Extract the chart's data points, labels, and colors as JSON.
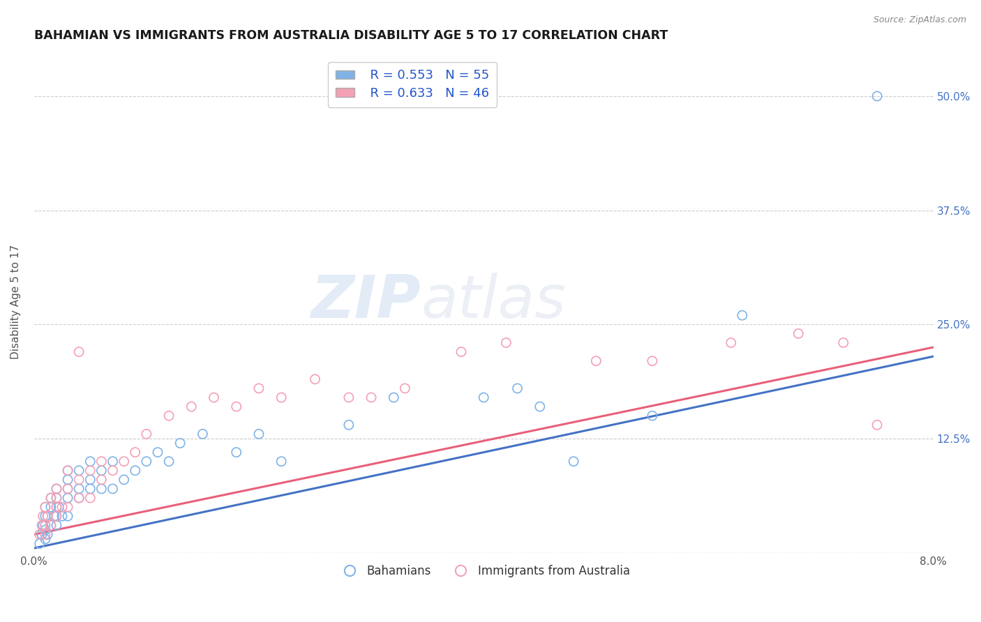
{
  "title": "BAHAMIAN VS IMMIGRANTS FROM AUSTRALIA DISABILITY AGE 5 TO 17 CORRELATION CHART",
  "source": "Source: ZipAtlas.com",
  "ylabel": "Disability Age 5 to 17",
  "xlim": [
    0.0,
    0.08
  ],
  "ylim": [
    0.0,
    0.55
  ],
  "xticks": [
    0.0,
    0.01,
    0.02,
    0.03,
    0.04,
    0.05,
    0.06,
    0.07,
    0.08
  ],
  "xticklabels": [
    "0.0%",
    "",
    "",
    "",
    "",
    "",
    "",
    "",
    "8.0%"
  ],
  "ytick_positions": [
    0.0,
    0.125,
    0.25,
    0.375,
    0.5
  ],
  "yticklabels": [
    "",
    "12.5%",
    "25.0%",
    "37.5%",
    "50.0%"
  ],
  "blue_color": "#7fb3e8",
  "pink_color": "#f4a0b5",
  "blue_line_color": "#4472c4",
  "pink_line_color": "#e8607a",
  "legend_r1": "R = 0.553",
  "legend_n1": "N = 55",
  "legend_r2": "R = 0.633",
  "legend_n2": "N = 46",
  "legend_label1": "Bahamians",
  "legend_label2": "Immigrants from Australia",
  "watermark": "ZIPatlas",
  "background_color": "#ffffff",
  "blue_scatter_x": [
    0.0005,
    0.0007,
    0.0008,
    0.001,
    0.001,
    0.001,
    0.001,
    0.001,
    0.0012,
    0.0012,
    0.0015,
    0.0015,
    0.0015,
    0.0018,
    0.002,
    0.002,
    0.002,
    0.002,
    0.002,
    0.0022,
    0.0025,
    0.003,
    0.003,
    0.003,
    0.003,
    0.003,
    0.004,
    0.004,
    0.004,
    0.005,
    0.005,
    0.005,
    0.006,
    0.006,
    0.007,
    0.007,
    0.008,
    0.009,
    0.01,
    0.011,
    0.012,
    0.013,
    0.015,
    0.018,
    0.02,
    0.022,
    0.028,
    0.032,
    0.04,
    0.043,
    0.045,
    0.048,
    0.055,
    0.063,
    0.075
  ],
  "blue_scatter_y": [
    0.01,
    0.02,
    0.03,
    0.015,
    0.025,
    0.03,
    0.04,
    0.05,
    0.02,
    0.04,
    0.03,
    0.05,
    0.06,
    0.04,
    0.03,
    0.04,
    0.05,
    0.06,
    0.07,
    0.05,
    0.04,
    0.04,
    0.06,
    0.07,
    0.08,
    0.09,
    0.06,
    0.07,
    0.09,
    0.07,
    0.08,
    0.1,
    0.07,
    0.09,
    0.07,
    0.1,
    0.08,
    0.09,
    0.1,
    0.11,
    0.1,
    0.12,
    0.13,
    0.11,
    0.13,
    0.1,
    0.14,
    0.17,
    0.17,
    0.18,
    0.16,
    0.1,
    0.15,
    0.26,
    0.5
  ],
  "pink_scatter_x": [
    0.0005,
    0.0007,
    0.0008,
    0.001,
    0.001,
    0.001,
    0.0012,
    0.0015,
    0.0015,
    0.002,
    0.002,
    0.002,
    0.002,
    0.0025,
    0.003,
    0.003,
    0.003,
    0.004,
    0.004,
    0.004,
    0.005,
    0.005,
    0.006,
    0.006,
    0.007,
    0.008,
    0.009,
    0.01,
    0.012,
    0.014,
    0.016,
    0.018,
    0.02,
    0.022,
    0.025,
    0.028,
    0.03,
    0.033,
    0.038,
    0.042,
    0.05,
    0.055,
    0.062,
    0.068,
    0.072,
    0.075
  ],
  "pink_scatter_y": [
    0.02,
    0.03,
    0.04,
    0.02,
    0.03,
    0.05,
    0.04,
    0.03,
    0.06,
    0.04,
    0.05,
    0.06,
    0.07,
    0.05,
    0.05,
    0.07,
    0.09,
    0.06,
    0.08,
    0.22,
    0.06,
    0.09,
    0.08,
    0.1,
    0.09,
    0.1,
    0.11,
    0.13,
    0.15,
    0.16,
    0.17,
    0.16,
    0.18,
    0.17,
    0.19,
    0.17,
    0.17,
    0.18,
    0.22,
    0.23,
    0.21,
    0.21,
    0.23,
    0.24,
    0.23,
    0.14
  ],
  "blue_line_x0": 0.0,
  "blue_line_y0": 0.005,
  "blue_line_x1": 0.08,
  "blue_line_y1": 0.215,
  "pink_line_x0": 0.0,
  "pink_line_y0": 0.02,
  "pink_line_x1": 0.08,
  "pink_line_y1": 0.225
}
